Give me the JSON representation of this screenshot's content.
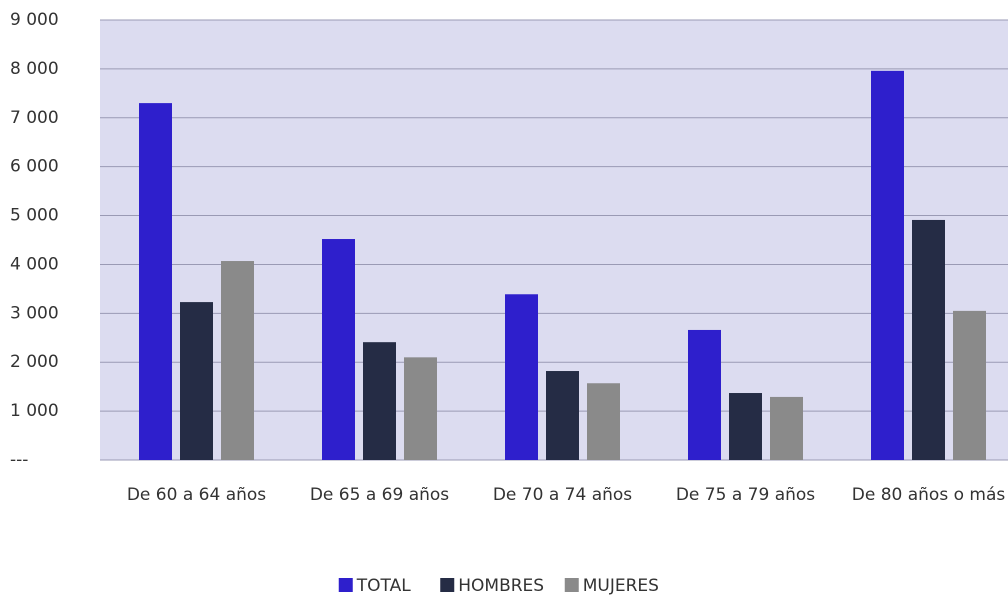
{
  "chart_data": {
    "type": "bar",
    "categories": [
      "De 60 a 64 años",
      "De 65 a 69 años",
      "De 70 a 74 años",
      "De 75 a 79 años",
      "De 80 años o más"
    ],
    "series": [
      {
        "name": "TOTAL",
        "color": "#2e1fcc",
        "values": [
          7300,
          4520,
          3390,
          2660,
          7960
        ]
      },
      {
        "name": "HOMBRES",
        "color": "#252c45",
        "values": [
          3230,
          2410,
          1820,
          1370,
          4910
        ]
      },
      {
        "name": "MUJERES",
        "color": "#8a8a8a",
        "values": [
          4070,
          2100,
          1570,
          1290,
          3050
        ]
      }
    ],
    "ylim": [
      0,
      9000
    ],
    "yticks": [
      {
        "value": 0,
        "label": "---"
      },
      {
        "value": 1000,
        "label": "1 000"
      },
      {
        "value": 2000,
        "label": "2 000"
      },
      {
        "value": 3000,
        "label": "3 000"
      },
      {
        "value": 4000,
        "label": "4 000"
      },
      {
        "value": 5000,
        "label": "5 000"
      },
      {
        "value": 6000,
        "label": "6 000"
      },
      {
        "value": 7000,
        "label": "7 000"
      },
      {
        "value": 8000,
        "label": "8 000"
      },
      {
        "value": 9000,
        "label": "9 000"
      }
    ],
    "grid": true,
    "legend": "bottom"
  }
}
